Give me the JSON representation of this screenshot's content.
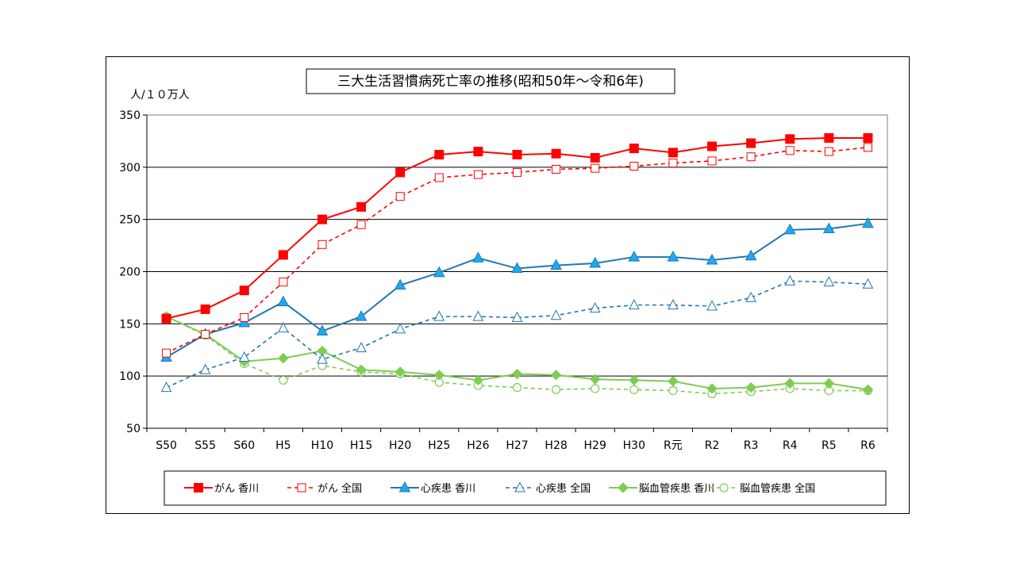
{
  "chart_data": {
    "type": "line",
    "title": "三大生活習慣病死亡率の推移(昭和50年～令和6年)",
    "ylabel": "人/１０万人",
    "xlabel": "",
    "ylim": [
      50,
      350
    ],
    "yticks": [
      50,
      100,
      150,
      200,
      250,
      300,
      350
    ],
    "grid": true,
    "legend_position": "bottom",
    "categories": [
      "S50",
      "S55",
      "S60",
      "H5",
      "H10",
      "H15",
      "H20",
      "H25",
      "H26",
      "H27",
      "H28",
      "H29",
      "H30",
      "R元",
      "R2",
      "R3",
      "R4",
      "R5",
      "R6"
    ],
    "series": [
      {
        "name": "がん 香川",
        "color": "#ff0000",
        "style": "solid",
        "marker": "square-filled",
        "values": [
          155,
          164,
          182,
          216,
          250,
          262,
          295,
          312,
          315,
          312,
          313,
          309,
          318,
          314,
          320,
          323,
          327,
          328,
          328
        ]
      },
      {
        "name": "がん 全国",
        "color": "#ff0000",
        "style": "dashed",
        "marker": "square-open",
        "values": [
          122,
          140,
          156,
          190,
          226,
          245,
          272,
          290,
          293,
          295,
          298,
          299,
          301,
          304,
          306,
          310,
          316,
          315,
          319
        ]
      },
      {
        "name": "心疾患 香川",
        "color": "#1f77b4",
        "style": "solid",
        "marker": "triangle-filled",
        "values": [
          118,
          140,
          151,
          171,
          143,
          157,
          187,
          199,
          213,
          203,
          206,
          208,
          214,
          214,
          211,
          215,
          240,
          241,
          246
        ]
      },
      {
        "name": "心疾患 全国",
        "color": "#1f77b4",
        "style": "dashed",
        "marker": "triangle-open",
        "values": [
          89,
          106,
          118,
          146,
          116,
          127,
          145,
          157,
          157,
          156,
          158,
          165,
          168,
          168,
          167,
          175,
          191,
          190,
          188
        ]
      },
      {
        "name": "脳血管疾患 香川",
        "color": "#7fcc52",
        "style": "solid",
        "marker": "diamond-filled",
        "values": [
          157,
          140,
          114,
          117,
          124,
          106,
          104,
          101,
          96,
          102,
          101,
          97,
          96,
          95,
          88,
          89,
          93,
          93,
          87
        ]
      },
      {
        "name": "脳血管疾患 全国",
        "color": "#7fcc52",
        "style": "dashed",
        "marker": "circle-open",
        "values": [
          157,
          139,
          112,
          96,
          110,
          104,
          102,
          94,
          91,
          89,
          87,
          88,
          87,
          86,
          83,
          85,
          88,
          86,
          86
        ]
      }
    ]
  }
}
